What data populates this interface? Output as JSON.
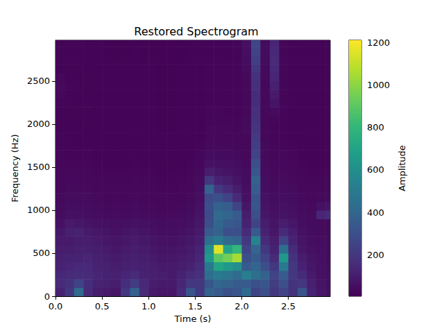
{
  "chart_data": {
    "type": "heatmap",
    "title": "Restored Spectrogram",
    "x_label": "Time (s)",
    "y_label": "Frequency (Hz)",
    "xlim": [
      0,
      2.95
    ],
    "ylim": [
      0,
      2975
    ],
    "xticks": [
      {
        "value": 0,
        "label": "0.0"
      },
      0.5,
      {
        "value": 1,
        "label": "1.0"
      },
      1.5,
      {
        "value": 2,
        "label": "2.0"
      },
      2.5
    ],
    "yticks": [
      0,
      500,
      1000,
      1500,
      2000,
      2500
    ],
    "x": [
      0,
      0.1,
      0.2,
      0.3,
      0.4,
      0.5,
      0.6,
      0.7,
      0.8,
      0.9,
      1.0,
      1.1,
      1.2,
      1.3,
      1.4,
      1.5,
      1.6,
      1.7,
      1.8,
      1.9,
      2.0,
      2.1,
      2.2,
      2.3,
      2.4,
      2.5,
      2.6,
      2.7,
      2.8,
      2.9
    ],
    "y": [
      0,
      100,
      200,
      300,
      400,
      500,
      600,
      700,
      800,
      900,
      1000,
      1100,
      1200,
      1300,
      1400,
      1500,
      1600,
      1700,
      1800,
      1900,
      2000,
      2100,
      2200,
      2300,
      2400,
      2500,
      2600,
      2700,
      2800,
      2900
    ],
    "z": [
      [
        120,
        200,
        420,
        150,
        100,
        90,
        80,
        200,
        380,
        150,
        90,
        80,
        80,
        150,
        320,
        200,
        380,
        350,
        300,
        320,
        420,
        250,
        300,
        200,
        250,
        180,
        320,
        120,
        80,
        60
      ],
      [
        150,
        180,
        250,
        160,
        120,
        110,
        100,
        160,
        220,
        140,
        100,
        90,
        90,
        130,
        200,
        200,
        330,
        400,
        380,
        350,
        350,
        300,
        330,
        220,
        300,
        180,
        200,
        110,
        70,
        50
      ],
      [
        140,
        150,
        160,
        150,
        130,
        120,
        110,
        130,
        150,
        120,
        110,
        100,
        90,
        120,
        150,
        170,
        450,
        500,
        480,
        420,
        520,
        450,
        380,
        250,
        350,
        200,
        150,
        90,
        60,
        50
      ],
      [
        120,
        130,
        140,
        140,
        120,
        110,
        100,
        110,
        120,
        110,
        100,
        90,
        90,
        100,
        120,
        150,
        500,
        700,
        650,
        600,
        350,
        400,
        300,
        200,
        500,
        200,
        120,
        80,
        60,
        45
      ],
      [
        110,
        120,
        120,
        130,
        110,
        100,
        90,
        100,
        110,
        100,
        90,
        80,
        80,
        90,
        100,
        130,
        650,
        900,
        950,
        1050,
        300,
        350,
        250,
        150,
        650,
        180,
        100,
        70,
        55,
        40
      ],
      [
        100,
        100,
        110,
        110,
        100,
        90,
        80,
        90,
        100,
        90,
        80,
        70,
        70,
        80,
        90,
        120,
        600,
        1150,
        700,
        800,
        250,
        400,
        200,
        120,
        450,
        150,
        80,
        60,
        50,
        40
      ],
      [
        90,
        90,
        100,
        100,
        90,
        80,
        70,
        80,
        90,
        80,
        70,
        60,
        60,
        70,
        80,
        100,
        450,
        500,
        420,
        400,
        200,
        550,
        150,
        100,
        250,
        120,
        70,
        50,
        45,
        35
      ],
      [
        80,
        110,
        120,
        90,
        80,
        70,
        60,
        70,
        80,
        70,
        60,
        50,
        50,
        60,
        70,
        90,
        350,
        380,
        300,
        300,
        150,
        350,
        120,
        80,
        150,
        100,
        60,
        45,
        40,
        35
      ],
      [
        60,
        90,
        80,
        70,
        60,
        55,
        50,
        55,
        60,
        55,
        50,
        45,
        45,
        50,
        55,
        80,
        300,
        400,
        350,
        330,
        120,
        250,
        100,
        70,
        100,
        80,
        50,
        40,
        40,
        35
      ],
      [
        45,
        55,
        55,
        50,
        45,
        40,
        40,
        40,
        45,
        40,
        40,
        35,
        35,
        40,
        45,
        70,
        280,
        420,
        400,
        350,
        100,
        300,
        80,
        60,
        70,
        60,
        45,
        40,
        130,
        150
      ],
      [
        40,
        45,
        45,
        45,
        40,
        35,
        35,
        35,
        40,
        35,
        35,
        30,
        30,
        35,
        40,
        60,
        300,
        380,
        360,
        250,
        80,
        330,
        70,
        50,
        60,
        50,
        40,
        35,
        60,
        70
      ],
      [
        35,
        40,
        40,
        40,
        35,
        30,
        30,
        30,
        35,
        30,
        30,
        28,
        28,
        30,
        35,
        50,
        280,
        300,
        250,
        150,
        60,
        320,
        60,
        45,
        50,
        45,
        35,
        30,
        35,
        40
      ],
      [
        30,
        35,
        35,
        35,
        30,
        28,
        28,
        28,
        30,
        28,
        28,
        25,
        25,
        28,
        30,
        45,
        380,
        200,
        150,
        100,
        50,
        350,
        50,
        40,
        45,
        40,
        30,
        28,
        30,
        30
      ],
      [
        30,
        30,
        30,
        30,
        28,
        25,
        25,
        25,
        28,
        25,
        25,
        22,
        22,
        25,
        28,
        40,
        200,
        120,
        100,
        70,
        45,
        380,
        45,
        35,
        40,
        35,
        28,
        25,
        25,
        25
      ],
      [
        28,
        28,
        28,
        28,
        25,
        22,
        22,
        22,
        25,
        22,
        22,
        20,
        20,
        22,
        25,
        35,
        100,
        80,
        70,
        55,
        40,
        330,
        40,
        30,
        35,
        30,
        25,
        22,
        22,
        22
      ],
      [
        25,
        25,
        25,
        25,
        22,
        20,
        20,
        20,
        22,
        20,
        20,
        18,
        18,
        20,
        22,
        30,
        60,
        55,
        50,
        45,
        35,
        300,
        40,
        30,
        30,
        28,
        22,
        20,
        20,
        20
      ],
      [
        25,
        22,
        22,
        22,
        20,
        18,
        18,
        18,
        20,
        18,
        18,
        16,
        16,
        18,
        20,
        25,
        45,
        40,
        40,
        35,
        30,
        250,
        35,
        25,
        28,
        25,
        20,
        18,
        18,
        18
      ],
      [
        22,
        22,
        20,
        20,
        18,
        16,
        16,
        16,
        18,
        16,
        16,
        15,
        15,
        16,
        18,
        22,
        35,
        35,
        35,
        30,
        28,
        230,
        35,
        25,
        25,
        22,
        18,
        16,
        16,
        16
      ],
      [
        22,
        20,
        20,
        20,
        18,
        16,
        16,
        16,
        18,
        16,
        16,
        15,
        15,
        16,
        18,
        20,
        30,
        30,
        30,
        28,
        30,
        210,
        30,
        22,
        22,
        20,
        18,
        16,
        16,
        16
      ],
      [
        20,
        20,
        18,
        18,
        16,
        15,
        15,
        15,
        16,
        15,
        15,
        14,
        14,
        15,
        16,
        18,
        28,
        28,
        28,
        25,
        40,
        190,
        28,
        22,
        22,
        20,
        16,
        15,
        15,
        15
      ],
      [
        20,
        18,
        18,
        18,
        16,
        15,
        15,
        15,
        16,
        15,
        15,
        14,
        14,
        15,
        16,
        18,
        25,
        25,
        25,
        25,
        35,
        180,
        30,
        25,
        22,
        18,
        16,
        15,
        15,
        15
      ],
      [
        20,
        18,
        18,
        18,
        16,
        15,
        15,
        15,
        16,
        15,
        15,
        14,
        14,
        15,
        16,
        18,
        25,
        25,
        22,
        22,
        30,
        170,
        30,
        40,
        22,
        18,
        16,
        15,
        15,
        15
      ],
      [
        22,
        18,
        18,
        18,
        16,
        15,
        15,
        15,
        16,
        15,
        15,
        14,
        14,
        15,
        16,
        18,
        22,
        22,
        22,
        22,
        30,
        160,
        30,
        70,
        25,
        18,
        16,
        15,
        15,
        15
      ],
      [
        30,
        20,
        18,
        18,
        16,
        15,
        15,
        15,
        16,
        15,
        15,
        14,
        14,
        15,
        16,
        18,
        22,
        22,
        22,
        22,
        30,
        160,
        30,
        90,
        25,
        18,
        16,
        15,
        15,
        15
      ],
      [
        35,
        22,
        18,
        18,
        16,
        15,
        15,
        15,
        16,
        15,
        15,
        14,
        14,
        15,
        16,
        18,
        22,
        22,
        22,
        22,
        30,
        170,
        30,
        110,
        25,
        18,
        16,
        15,
        15,
        15
      ],
      [
        30,
        20,
        18,
        18,
        16,
        15,
        15,
        15,
        16,
        15,
        15,
        14,
        14,
        15,
        16,
        18,
        22,
        22,
        22,
        22,
        35,
        180,
        35,
        130,
        25,
        18,
        16,
        15,
        15,
        15
      ],
      [
        20,
        18,
        18,
        18,
        16,
        15,
        15,
        15,
        16,
        15,
        15,
        14,
        14,
        15,
        16,
        18,
        22,
        22,
        22,
        22,
        40,
        200,
        35,
        140,
        25,
        18,
        16,
        15,
        15,
        15
      ],
      [
        18,
        16,
        16,
        16,
        15,
        14,
        14,
        14,
        15,
        14,
        14,
        13,
        13,
        14,
        15,
        16,
        20,
        20,
        20,
        22,
        45,
        230,
        40,
        150,
        25,
        18,
        16,
        15,
        15,
        15
      ],
      [
        18,
        16,
        16,
        16,
        15,
        14,
        14,
        14,
        15,
        14,
        14,
        13,
        13,
        14,
        15,
        16,
        20,
        20,
        20,
        22,
        50,
        250,
        40,
        140,
        25,
        18,
        16,
        15,
        15,
        15
      ],
      [
        18,
        16,
        16,
        16,
        15,
        14,
        14,
        14,
        15,
        14,
        14,
        13,
        13,
        14,
        15,
        16,
        20,
        20,
        20,
        22,
        55,
        260,
        40,
        130,
        25,
        18,
        16,
        15,
        15,
        15
      ]
    ],
    "colorbar": {
      "label": "Amplitude",
      "range": [
        5,
        1210
      ],
      "ticks": [
        200,
        400,
        600,
        800,
        1000,
        1200
      ]
    }
  }
}
